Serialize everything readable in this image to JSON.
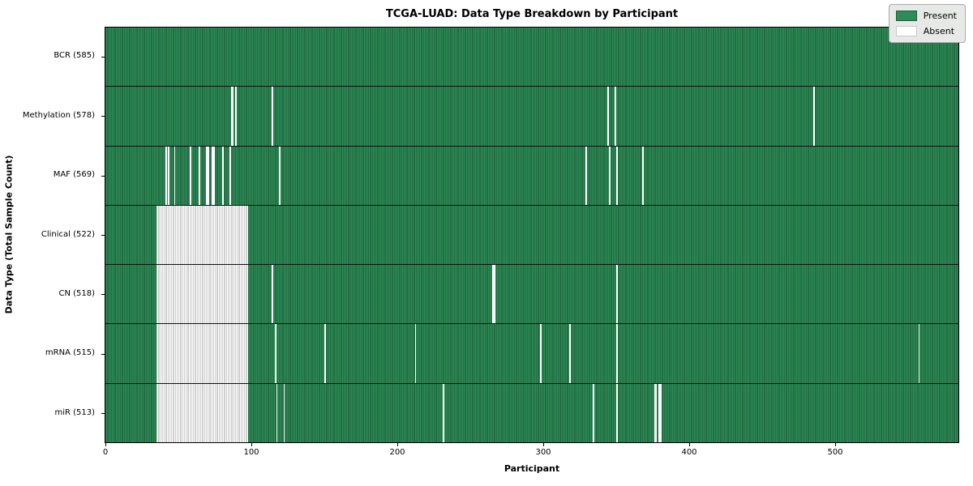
{
  "chart_data": {
    "type": "heatmap",
    "title": "TCGA-LUAD: Data Type Breakdown by Participant",
    "xlabel": "Participant",
    "ylabel": "Data Type (Total Sample Count)",
    "x_ticks": [
      0,
      100,
      200,
      300,
      400,
      500
    ],
    "x_max": 585,
    "grid": false,
    "colors": {
      "present": "#2e8b57",
      "present_edge": "#17512f",
      "absent": "#ffffff",
      "absent_edge": "#9d9d9d",
      "plot_border": "#000000"
    },
    "legend": {
      "position": "upper right",
      "items": [
        {
          "label": "Present",
          "color": "#2e8b57"
        },
        {
          "label": "Absent",
          "color": "#ffffff"
        }
      ]
    },
    "rows": [
      {
        "label": "BCR (585)",
        "data_type": "BCR",
        "present_count": 585,
        "absent_ranges": []
      },
      {
        "label": "Methylation (578)",
        "data_type": "Methylation",
        "present_count": 578,
        "absent_ranges": [
          [
            86,
            2
          ],
          [
            89,
            1
          ],
          [
            114,
            1
          ],
          [
            344,
            1
          ],
          [
            349,
            1
          ],
          [
            485,
            1
          ]
        ]
      },
      {
        "label": "MAF (569)",
        "data_type": "MAF",
        "present_count": 569,
        "absent_ranges": [
          [
            41,
            1
          ],
          [
            43,
            1
          ],
          [
            47,
            1
          ],
          [
            58,
            1
          ],
          [
            64,
            1
          ],
          [
            69,
            2
          ],
          [
            73,
            2
          ],
          [
            80,
            1
          ],
          [
            85,
            1
          ],
          [
            119,
            1
          ],
          [
            329,
            1
          ],
          [
            345,
            1
          ],
          [
            350,
            1
          ],
          [
            368,
            1
          ]
        ]
      },
      {
        "label": "Clinical (522)",
        "data_type": "Clinical",
        "present_count": 522,
        "absent_ranges": [
          [
            35,
            63
          ]
        ]
      },
      {
        "label": "CN (518)",
        "data_type": "CN",
        "present_count": 518,
        "absent_ranges": [
          [
            35,
            63
          ],
          [
            114,
            1
          ],
          [
            265,
            2
          ],
          [
            350,
            1
          ]
        ]
      },
      {
        "label": "mRNA (515)",
        "data_type": "mRNA",
        "present_count": 515,
        "absent_ranges": [
          [
            35,
            63
          ],
          [
            116,
            1
          ],
          [
            150,
            1
          ],
          [
            212,
            1
          ],
          [
            298,
            1
          ],
          [
            318,
            1
          ],
          [
            350,
            1
          ],
          [
            557,
            1
          ]
        ]
      },
      {
        "label": "miR (513)",
        "data_type": "miR",
        "present_count": 513,
        "absent_ranges": [
          [
            35,
            63
          ],
          [
            117,
            1
          ],
          [
            122,
            1
          ],
          [
            231,
            1
          ],
          [
            334,
            1
          ],
          [
            350,
            1
          ],
          [
            376,
            2
          ],
          [
            379,
            2
          ]
        ]
      }
    ]
  }
}
